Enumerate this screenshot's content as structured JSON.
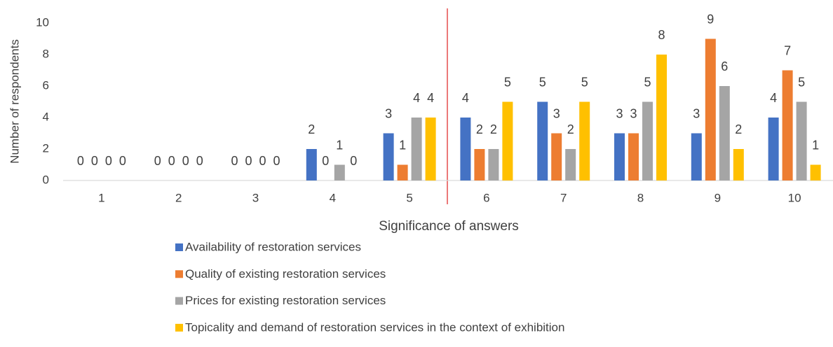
{
  "chart_data": {
    "type": "bar",
    "x_label": "Significance of answers",
    "y_label": "Number of respondents",
    "categories": [
      "1",
      "2",
      "3",
      "4",
      "5",
      "6",
      "7",
      "8",
      "9",
      "10"
    ],
    "series": [
      {
        "name": "Availability of restoration services",
        "color": "#4472c4",
        "values": [
          0,
          0,
          0,
          2,
          3,
          4,
          5,
          3,
          3,
          4
        ]
      },
      {
        "name": "Quality of existing restoration services",
        "color": "#ed7d31",
        "values": [
          0,
          0,
          0,
          0,
          1,
          2,
          3,
          3,
          9,
          7
        ]
      },
      {
        "name": "Prices for existing restoration services",
        "color": "#a5a5a5",
        "values": [
          0,
          0,
          0,
          1,
          4,
          2,
          2,
          5,
          6,
          5
        ]
      },
      {
        "name": "Topicality and demand of restoration services in the context of exhibition",
        "color": "#ffc000",
        "values": [
          0,
          0,
          0,
          0,
          4,
          5,
          5,
          8,
          2,
          1
        ]
      }
    ],
    "ylim": [
      0,
      10
    ],
    "yticks": [
      0,
      2,
      4,
      6,
      8,
      10
    ],
    "grid": false,
    "legend": "bottom"
  }
}
